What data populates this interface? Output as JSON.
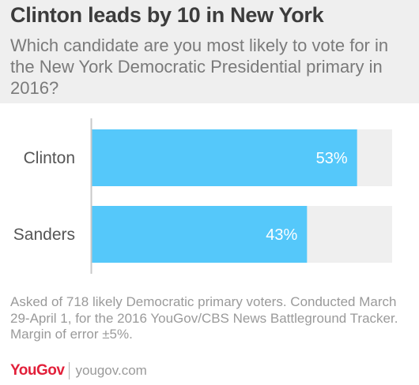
{
  "header": {
    "title": "Clinton leads by 10 in New York",
    "subtitle": "Which candidate are you most likely to vote for in the New York Democratic Presidential primary in 2016?"
  },
  "footnote": "Asked of 718 likely Democratic primary voters. Conducted March 29-April 1, for the 2016 YouGov/CBS News Battleground Tracker. Margin of error ±5%.",
  "brand": {
    "logo": "YouGov",
    "site": "yougov.com"
  },
  "colors": {
    "bar": "#55c8fa",
    "track": "#efefef",
    "axis": "#c8c8c8",
    "label": "#555555",
    "value": "#ffffff"
  },
  "chart_data": {
    "type": "bar",
    "orientation": "horizontal",
    "title": "Clinton leads by 10 in New York",
    "categories": [
      "Clinton",
      "Sanders"
    ],
    "values": [
      53,
      43
    ],
    "value_labels": [
      "53%",
      "43%"
    ],
    "xlim": [
      0,
      60
    ],
    "grid": false,
    "legend": "none"
  }
}
